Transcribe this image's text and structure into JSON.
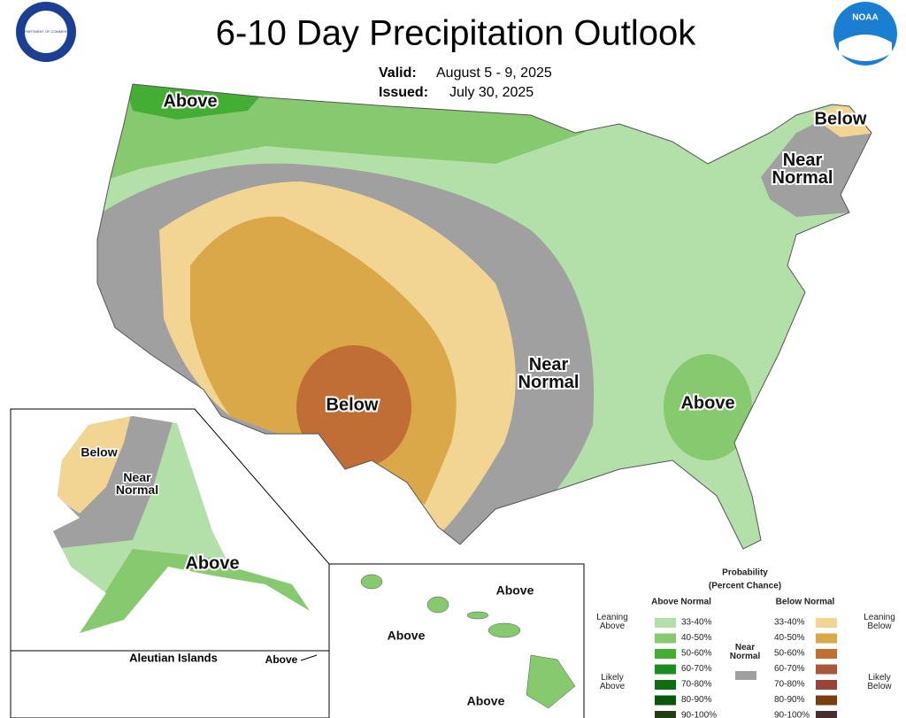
{
  "header": {
    "title": "6-10 Day Precipitation Outlook",
    "valid_label": "Valid:",
    "valid": "August 5 - 9, 2025",
    "issued_label": "Issued:",
    "issued": "July 30, 2025",
    "left_logo": "DEPARTMENT OF COMMERCE",
    "noaa_logo": "NOAA"
  },
  "map_labels": [
    "Above",
    "Below",
    "Near Normal",
    "Below",
    "Near Normal",
    "Above"
  ],
  "alaska_labels": [
    "Below",
    "Near Normal",
    "Above"
  ],
  "aleutians": {
    "title": "Aleutian Islands",
    "label": "Above"
  },
  "hawaii_labels": [
    "Above",
    "Above",
    "Above"
  ],
  "legend": {
    "title": "Probability",
    "subtitle": "(Percent Chance)",
    "above_header": "Above Normal",
    "below_header": "Below Normal",
    "near_label": "Near Normal",
    "near_color": "#a0a0a0",
    "leaning_above": "Leaning Above",
    "likely_above": "Likely Above",
    "leaning_below": "Leaning Below",
    "likely_below": "Likely Below",
    "above_rows": [
      {
        "range": "33-40%",
        "color": "#b3dfa8"
      },
      {
        "range": "40-50%",
        "color": "#86c96f"
      },
      {
        "range": "50-60%",
        "color": "#43ad34"
      },
      {
        "range": "60-70%",
        "color": "#1d8b1d"
      },
      {
        "range": "70-80%",
        "color": "#0f6e12"
      },
      {
        "range": "80-90%",
        "color": "#0a560d"
      },
      {
        "range": "90-100%",
        "color": "#243d15"
      }
    ],
    "below_rows": [
      {
        "range": "33-40%",
        "color": "#f2d493"
      },
      {
        "range": "40-50%",
        "color": "#dba849"
      },
      {
        "range": "50-60%",
        "color": "#c06e35"
      },
      {
        "range": "60-70%",
        "color": "#a8573a"
      },
      {
        "range": "70-80%",
        "color": "#9a4338"
      },
      {
        "range": "80-90%",
        "color": "#7a3d10"
      },
      {
        "range": "90-100%",
        "color": "#4a2e2e"
      }
    ]
  }
}
